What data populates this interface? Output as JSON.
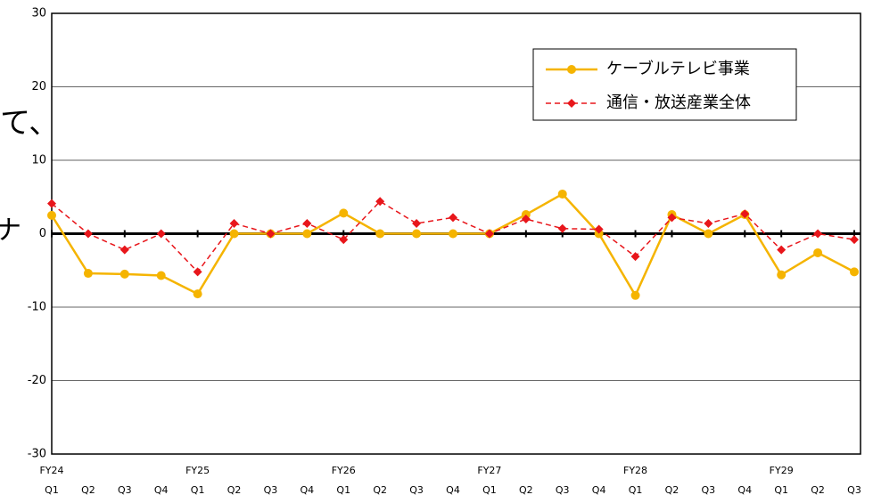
{
  "chart_data": {
    "type": "line",
    "background_text": [
      "て、",
      "ナ"
    ],
    "categories": [
      "Q1",
      "Q2",
      "Q3",
      "Q4",
      "Q1",
      "Q2",
      "Q3",
      "Q4",
      "Q1",
      "Q2",
      "Q3",
      "Q4",
      "Q1",
      "Q2",
      "Q3",
      "Q4",
      "Q1",
      "Q2",
      "Q3",
      "Q4",
      "Q1",
      "Q2",
      "Q3"
    ],
    "years": [
      "FY24",
      null,
      null,
      null,
      "FY25",
      null,
      null,
      null,
      "FY26",
      null,
      null,
      null,
      "FY27",
      null,
      null,
      null,
      "FY28",
      null,
      null,
      null,
      "FY29",
      null,
      null
    ],
    "series": [
      {
        "name": "ケーブルテレビ事業",
        "color": "#f5b400",
        "marker": "circle",
        "dash": false,
        "values": [
          2.5,
          -5.4,
          -5.5,
          -5.7,
          -8.2,
          0,
          0,
          0,
          2.8,
          0,
          0,
          0,
          0,
          2.6,
          5.4,
          0,
          -8.4,
          2.6,
          0,
          2.6,
          -5.6,
          -2.6,
          -5.2
        ]
      },
      {
        "name": "通信・放送産業全体",
        "color": "#e8161b",
        "marker": "diamond",
        "dash": true,
        "values": [
          4.1,
          0,
          -2.2,
          0,
          -5.2,
          1.4,
          0,
          1.4,
          -0.8,
          4.4,
          1.4,
          2.2,
          0,
          2.0,
          0.7,
          0.6,
          -3.1,
          2.2,
          1.4,
          2.7,
          -2.2,
          0,
          -0.8
        ]
      }
    ],
    "ylim": [
      -30,
      30
    ],
    "yticks": [
      -30,
      -20,
      -10,
      0,
      10,
      20,
      30
    ],
    "grid": true
  }
}
